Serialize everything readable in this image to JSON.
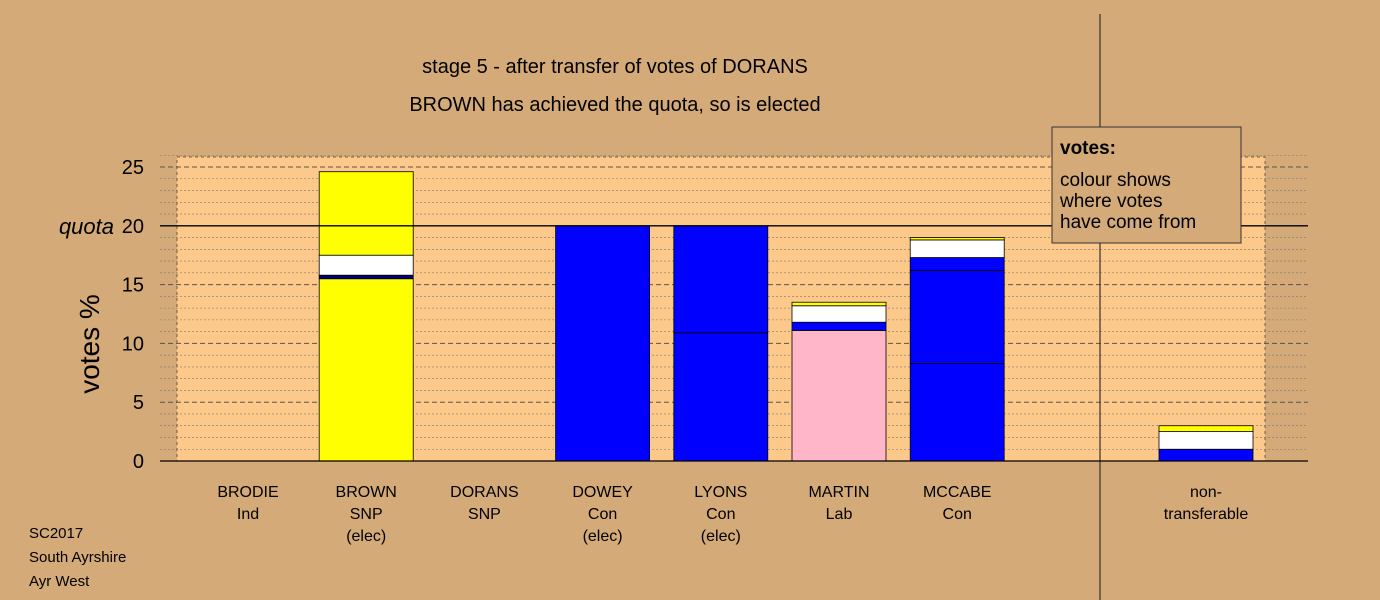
{
  "chart_data": {
    "type": "bar",
    "stacked": true,
    "title": "stage 5 - after transfer of votes of DORANS",
    "subtitle": "BROWN has achieved the quota, so is elected",
    "ylabel": "votes %",
    "ylim": [
      0,
      26
    ],
    "yticks": [
      0,
      5,
      10,
      15,
      20,
      25
    ],
    "quota": {
      "label": "quota",
      "value": 20
    },
    "grid": true,
    "categories": [
      {
        "name": "BRODIE",
        "party": "Ind",
        "status": ""
      },
      {
        "name": "BROWN",
        "party": "SNP",
        "status": "(elec)"
      },
      {
        "name": "DORANS",
        "party": "SNP",
        "status": ""
      },
      {
        "name": "DOWEY",
        "party": "Con",
        "status": "(elec)"
      },
      {
        "name": "LYONS",
        "party": "Con",
        "status": "(elec)"
      },
      {
        "name": "MARTIN",
        "party": "Lab",
        "status": ""
      },
      {
        "name": "MCCABE",
        "party": "Con",
        "status": ""
      },
      {
        "name": "non-",
        "party": "transferable",
        "status": ""
      }
    ],
    "bars": [
      [],
      [
        {
          "value": 15.5,
          "color": "#ffff00"
        },
        {
          "value": 0.3,
          "color": "#000080"
        },
        {
          "value": 1.7,
          "color": "#ffffff"
        },
        {
          "value": 7.1,
          "color": "#ffff00"
        }
      ],
      [],
      [
        {
          "value": 20.0,
          "color": "#0000ff"
        }
      ],
      [
        {
          "value": 10.9,
          "color": "#0000ff"
        },
        {
          "value": 9.1,
          "color": "#0000ff"
        }
      ],
      [
        {
          "value": 11.1,
          "color": "#ffb6c8"
        },
        {
          "value": 0.7,
          "color": "#0000ff"
        },
        {
          "value": 1.4,
          "color": "#ffffff"
        },
        {
          "value": 0.3,
          "color": "#ffff00"
        }
      ],
      [
        {
          "value": 8.3,
          "color": "#0000ff"
        },
        {
          "value": 7.9,
          "color": "#0000ff"
        },
        {
          "value": 1.1,
          "color": "#0000ff"
        },
        {
          "value": 1.5,
          "color": "#ffffff"
        },
        {
          "value": 0.2,
          "color": "#ffff00"
        }
      ],
      [
        {
          "value": 1.0,
          "color": "#0000ff"
        },
        {
          "value": 1.5,
          "color": "#ffffff"
        },
        {
          "value": 0.5,
          "color": "#ffff00"
        }
      ]
    ],
    "colors": {
      "background": "#d4aa78",
      "plot_area": "#fcc98a"
    }
  },
  "legend": {
    "title": "votes:",
    "lines": [
      "colour shows",
      "where votes",
      "have come from"
    ]
  },
  "footer": [
    "SC2017",
    "South Ayrshire",
    "Ayr West"
  ]
}
